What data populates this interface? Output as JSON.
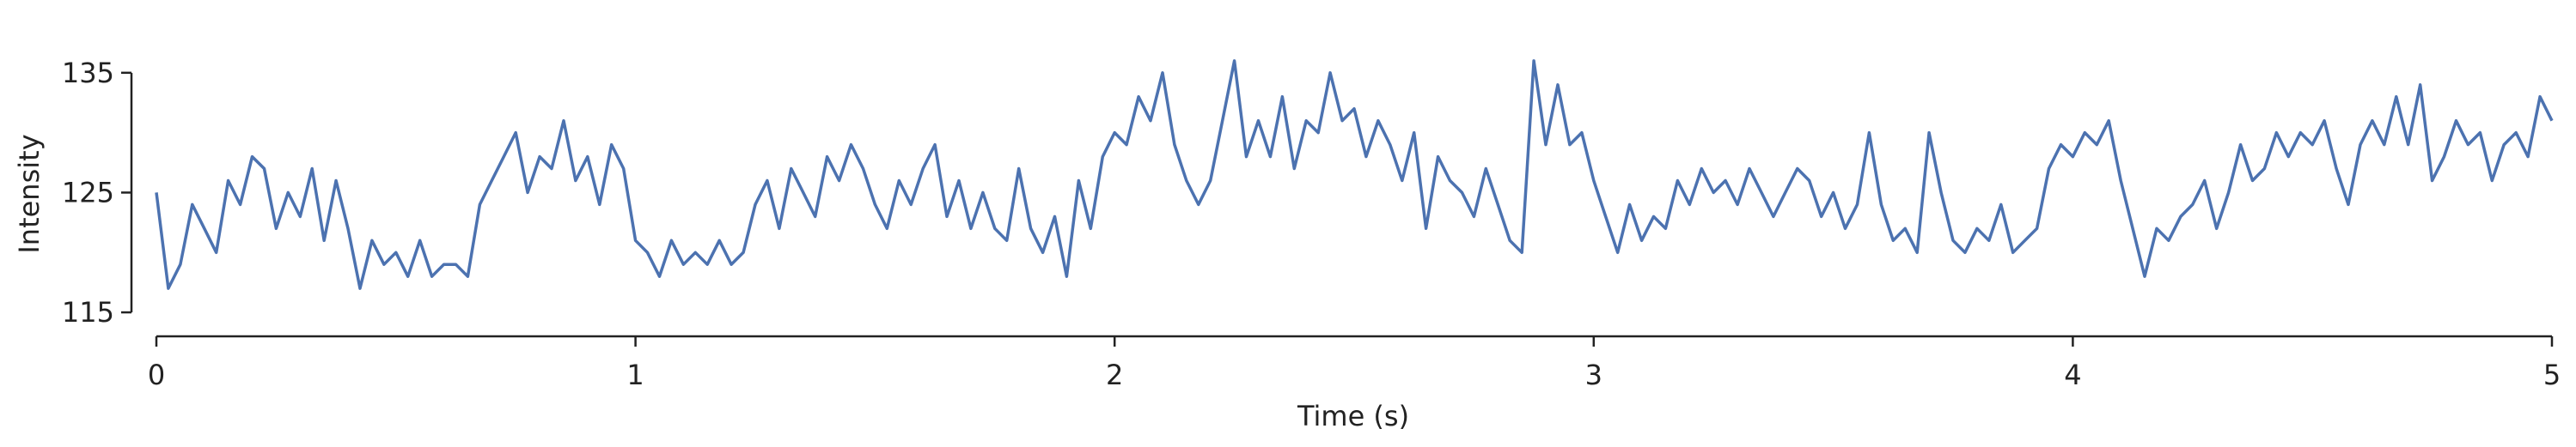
{
  "chart_data": {
    "type": "line",
    "xlabel": "Time (s)",
    "ylabel": "Intensity",
    "xlim": [
      0,
      5
    ],
    "xticks": [
      0,
      1,
      2,
      3,
      4,
      5
    ],
    "ylim": [
      113,
      140
    ],
    "yticks": [
      115,
      125,
      135
    ],
    "x": [
      0,
      0.025,
      0.05,
      0.075,
      0.1,
      0.125,
      0.15,
      0.175,
      0.2,
      0.225,
      0.25,
      0.275,
      0.3,
      0.325,
      0.35,
      0.375,
      0.4,
      0.425,
      0.45,
      0.475,
      0.5,
      0.525,
      0.55,
      0.575,
      0.6,
      0.625,
      0.65,
      0.675,
      0.7,
      0.725,
      0.75,
      0.775,
      0.8,
      0.825,
      0.85,
      0.875,
      0.9,
      0.925,
      0.95,
      0.975,
      1,
      1.025,
      1.05,
      1.075,
      1.1,
      1.125,
      1.15,
      1.175,
      1.2,
      1.225,
      1.25,
      1.275,
      1.3,
      1.325,
      1.35,
      1.375,
      1.4,
      1.425,
      1.45,
      1.475,
      1.5,
      1.525,
      1.55,
      1.575,
      1.6,
      1.625,
      1.65,
      1.675,
      1.7,
      1.725,
      1.75,
      1.775,
      1.8,
      1.825,
      1.85,
      1.875,
      1.9,
      1.925,
      1.95,
      1.975,
      2,
      2.025,
      2.05,
      2.075,
      2.1,
      2.125,
      2.15,
      2.175,
      2.2,
      2.225,
      2.25,
      2.275,
      2.3,
      2.325,
      2.35,
      2.375,
      2.4,
      2.425,
      2.45,
      2.475,
      2.5,
      2.525,
      2.55,
      2.575,
      2.6,
      2.625,
      2.65,
      2.675,
      2.7,
      2.725,
      2.75,
      2.775,
      2.8,
      2.825,
      2.85,
      2.875,
      2.9,
      2.925,
      2.95,
      2.975,
      3,
      3.025,
      3.05,
      3.075,
      3.1,
      3.125,
      3.15,
      3.175,
      3.2,
      3.225,
      3.25,
      3.275,
      3.3,
      3.325,
      3.35,
      3.375,
      3.4,
      3.425,
      3.45,
      3.475,
      3.5,
      3.525,
      3.55,
      3.575,
      3.6,
      3.625,
      3.65,
      3.675,
      3.7,
      3.725,
      3.75,
      3.775,
      3.8,
      3.825,
      3.85,
      3.875,
      3.9,
      3.925,
      3.95,
      3.975,
      4,
      4.025,
      4.05,
      4.075,
      4.1,
      4.125,
      4.15,
      4.175,
      4.2,
      4.225,
      4.25,
      4.275,
      4.3,
      4.325,
      4.35,
      4.375,
      4.4,
      4.425,
      4.45,
      4.475,
      4.5,
      4.525,
      4.55,
      4.575,
      4.6,
      4.625,
      4.65,
      4.675,
      4.7,
      4.725,
      4.75,
      4.775,
      4.8,
      4.825,
      4.85,
      4.875,
      4.9,
      4.925,
      4.95,
      4.975,
      5
    ],
    "series": [
      {
        "color": "#4c72b0",
        "values": [
          125,
          117,
          119,
          124,
          122,
          120,
          126,
          124,
          128,
          127,
          122,
          125,
          123,
          127,
          121,
          126,
          122,
          117,
          121,
          119,
          120,
          118,
          121,
          118,
          119,
          119,
          118,
          124,
          126,
          128,
          130,
          125,
          128,
          127,
          131,
          126,
          128,
          124,
          129,
          127,
          121,
          120,
          118,
          121,
          119,
          120,
          119,
          121,
          119,
          120,
          124,
          126,
          122,
          127,
          125,
          123,
          128,
          126,
          129,
          127,
          124,
          122,
          126,
          124,
          127,
          129,
          123,
          126,
          122,
          125,
          122,
          121,
          127,
          122,
          120,
          123,
          118,
          126,
          122,
          128,
          130,
          129,
          133,
          131,
          135,
          129,
          126,
          124,
          126,
          131,
          136,
          128,
          131,
          128,
          133,
          127,
          131,
          130,
          135,
          131,
          132,
          128,
          131,
          129,
          126,
          130,
          122,
          128,
          126,
          125,
          123,
          127,
          124,
          121,
          120,
          136,
          129,
          134,
          129,
          130,
          126,
          123,
          120,
          124,
          121,
          123,
          122,
          126,
          124,
          127,
          125,
          126,
          124,
          127,
          125,
          123,
          125,
          127,
          126,
          123,
          125,
          122,
          124,
          130,
          124,
          121,
          122,
          120,
          130,
          125,
          121,
          120,
          122,
          121,
          124,
          120,
          121,
          122,
          127,
          129,
          128,
          130,
          129,
          131,
          126,
          122,
          118,
          122,
          121,
          123,
          124,
          126,
          122,
          125,
          129,
          126,
          127,
          130,
          128,
          130,
          129,
          131,
          127,
          124,
          129,
          131,
          129,
          133,
          129,
          134,
          126,
          128,
          131,
          129,
          130,
          126,
          129,
          130,
          128,
          133,
          131
        ]
      }
    ]
  }
}
